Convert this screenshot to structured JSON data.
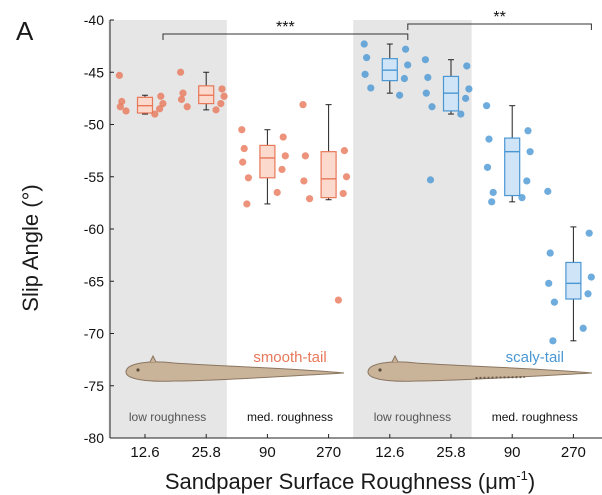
{
  "panel_label": "A",
  "colors": {
    "smooth": "#e8785a",
    "smooth_fill": "#fbd9cc",
    "scaly": "#4a97d4",
    "scaly_fill": "#cfe4f6",
    "shade": "#e6e6e6",
    "eel_body": "#c9b49a",
    "eel_outline": "#8a7560",
    "text": "#1a1a1a"
  },
  "chart_data": {
    "type": "box",
    "title": "",
    "xlabel": "Sandpaper Surface Roughness (μm",
    "xlabel_sup": "-1",
    "xlabel_close": ")",
    "ylabel": "Slip Angle (°)",
    "ylim": [
      -80,
      -40
    ],
    "yticks": [
      -40,
      -45,
      -50,
      -55,
      -60,
      -65,
      -70,
      -75,
      -80
    ],
    "categories": [
      "12.6",
      "25.8",
      "90",
      "270",
      "12.6",
      "25.8",
      "90",
      "270"
    ],
    "series": [
      {
        "name": "smooth-tail",
        "color_key": "smooth",
        "groups": [
          {
            "category_index": 0,
            "points": [
              -45.3,
              -47.3,
              -47.8,
              -48.0,
              -48.3,
              -48.5,
              -48.7,
              -49.0
            ],
            "box": {
              "q1": -48.9,
              "median": -48.2,
              "q3": -47.4,
              "whisker_low": -49.0,
              "whisker_high": -47.2
            }
          },
          {
            "category_index": 1,
            "points": [
              -45.0,
              -46.6,
              -47.0,
              -47.3,
              -47.6,
              -48.0,
              -48.3,
              -48.6
            ],
            "box": {
              "q1": -48.0,
              "median": -47.2,
              "q3": -46.3,
              "whisker_low": -48.6,
              "whisker_high": -45.0
            }
          },
          {
            "category_index": 2,
            "points": [
              -50.5,
              -51.2,
              -52.3,
              -53.0,
              -53.6,
              -54.3,
              -55.1,
              -56.5,
              -57.6
            ],
            "box": {
              "q1": -55.1,
              "median": -53.2,
              "q3": -52.0,
              "whisker_low": -57.6,
              "whisker_high": -50.5
            }
          },
          {
            "category_index": 3,
            "points": [
              -48.1,
              -52.5,
              -53.0,
              -55.0,
              -55.4,
              -56.6,
              -57.1,
              -66.8
            ],
            "box": {
              "q1": -57.0,
              "median": -55.2,
              "q3": -52.6,
              "whisker_low": -57.2,
              "whisker_high": -48.1
            }
          }
        ]
      },
      {
        "name": "scaly-tail",
        "color_key": "scaly",
        "groups": [
          {
            "category_index": 4,
            "points": [
              -42.3,
              -42.8,
              -43.6,
              -44.3,
              -45.2,
              -45.6,
              -46.5,
              -47.2
            ],
            "box": {
              "q1": -45.8,
              "median": -44.8,
              "q3": -43.7,
              "whisker_low": -47.0,
              "whisker_high": -42.3
            }
          },
          {
            "category_index": 5,
            "points": [
              -43.8,
              -44.4,
              -45.5,
              -46.6,
              -47.0,
              -47.5,
              -48.3,
              -49.0,
              -55.3
            ],
            "box": {
              "q1": -48.7,
              "median": -47.0,
              "q3": -45.4,
              "whisker_low": -49.0,
              "whisker_high": -43.8
            }
          },
          {
            "category_index": 6,
            "points": [
              -48.2,
              -50.6,
              -51.4,
              -52.6,
              -54.1,
              -55.4,
              -56.5,
              -57.0,
              -57.4
            ],
            "box": {
              "q1": -56.8,
              "median": -52.6,
              "q3": -51.3,
              "whisker_low": -57.4,
              "whisker_high": -48.2
            }
          },
          {
            "category_index": 7,
            "points": [
              -56.4,
              -60.4,
              -62.3,
              -64.6,
              -65.2,
              -66.2,
              -67.0,
              -69.5,
              -70.7
            ],
            "box": {
              "q1": -66.7,
              "median": -65.2,
              "q3": -63.2,
              "whisker_low": -70.7,
              "whisker_high": -59.8
            }
          }
        ]
      }
    ],
    "regions": [
      {
        "label": "low roughness",
        "from": 0,
        "to": 1,
        "shaded": true
      },
      {
        "label": "med. roughness",
        "from": 2,
        "to": 3,
        "shaded": false
      },
      {
        "label": "low roughness",
        "from": 4,
        "to": 5,
        "shaded": true
      },
      {
        "label": "med. roughness",
        "from": 6,
        "to": 7,
        "shaded": false
      }
    ],
    "significance": [
      {
        "label": "***",
        "from": 0.5,
        "to": 4.5,
        "level": 1
      },
      {
        "label": "**",
        "from": 4.5,
        "to": 7.5,
        "level": 2
      }
    ],
    "annotations": [
      {
        "label": "smooth-tail",
        "color_key": "smooth",
        "at": 2.5
      },
      {
        "label": "scaly-tail",
        "color_key": "scaly",
        "at": 6.5
      }
    ],
    "grid": false,
    "legend": "none"
  }
}
